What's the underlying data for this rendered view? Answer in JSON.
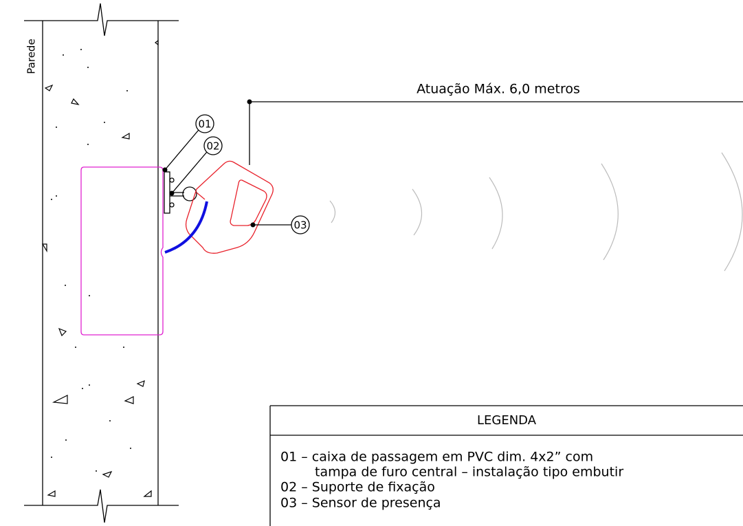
{
  "wall_label": "Parede",
  "range_label": "Atuação Máx. 6,0 metros",
  "callouts": [
    "01",
    "02",
    "03"
  ],
  "legend": {
    "title": "LEGENDA",
    "lines": [
      "01 – caixa de passagem em PVC dim. 4x2” com",
      "tampa de furo central – instalação tipo embutir",
      "02 – Suporte de fixação",
      "03 – Sensor de presença"
    ]
  }
}
